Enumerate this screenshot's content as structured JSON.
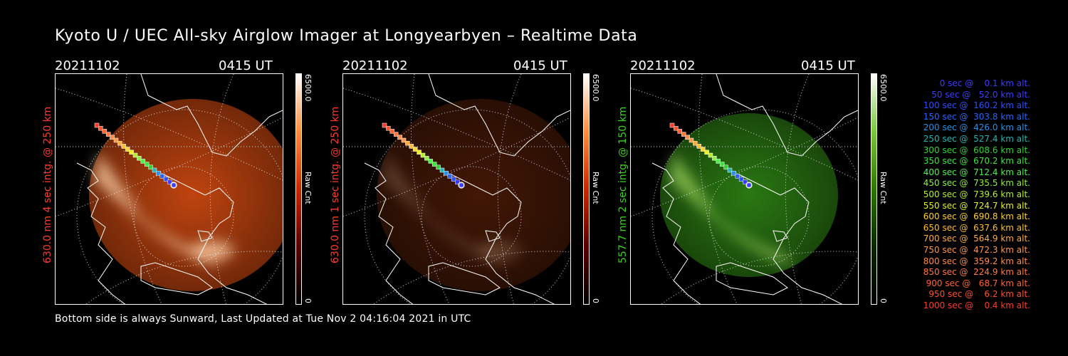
{
  "title": "Kyoto U / UEC All-sky Airglow Imager at Longyearbyen – Realtime Data",
  "footer": "Bottom side is always Sunward, Last Updated at Tue Nov  2 04:16:04 2021 in UTC",
  "colors": {
    "red_text": "#ff3c28",
    "green_text": "#3cd21e",
    "red_glow": "#ff5a14",
    "green_glow": "#46c81e"
  },
  "panels": [
    {
      "date": "20211102",
      "time": "0415 UT",
      "ylabel": "630.0 nm 4 sec intg. @ 250 km",
      "cbar_max": "6500.0",
      "cbar_min": "0",
      "cbar_label": "Raw Cnt",
      "color": "red",
      "intensity": 1.0
    },
    {
      "date": "20211102",
      "time": "0415 UT",
      "ylabel": "630.0 nm 1 sec intg. @ 250 km",
      "cbar_max": "6500.0",
      "cbar_min": "0",
      "cbar_label": "Raw Cnt",
      "color": "red",
      "intensity": 0.35
    },
    {
      "date": "20211102",
      "time": "0415 UT",
      "ylabel": "557.7 nm 2 sec intg. @ 150 km",
      "cbar_max": "6500.0",
      "cbar_min": "0",
      "cbar_label": "Raw Cnt",
      "color": "green",
      "intensity": 0.8
    }
  ],
  "legend": [
    {
      "text": "0 sec @    0.1 km alt.",
      "color": "#3c3cff"
    },
    {
      "text": "50 sec @   52.0 km alt.",
      "color": "#3c3cff"
    },
    {
      "text": "100 sec @  160.2 km alt.",
      "color": "#2850ff"
    },
    {
      "text": "150 sec @  303.8 km alt.",
      "color": "#2864ff"
    },
    {
      "text": "200 sec @  426.0 km alt.",
      "color": "#2890e6"
    },
    {
      "text": "250 sec @  527.4 km alt.",
      "color": "#28b4b4"
    },
    {
      "text": "300 sec @  608.6 km alt.",
      "color": "#32d232"
    },
    {
      "text": "350 sec @  670.2 km alt.",
      "color": "#3ce63c"
    },
    {
      "text": "400 sec @  712.4 km alt.",
      "color": "#50f050"
    },
    {
      "text": "450 sec @  735.5 km alt.",
      "color": "#8cf03c"
    },
    {
      "text": "500 sec @  739.6 km alt.",
      "color": "#b4f028"
    },
    {
      "text": "550 sec @  724.7 km alt.",
      "color": "#e6f028"
    },
    {
      "text": "600 sec @  690.8 km alt.",
      "color": "#ffd228"
    },
    {
      "text": "650 sec @  637.6 km alt.",
      "color": "#ffbe32"
    },
    {
      "text": "700 sec @  564.9 km alt.",
      "color": "#ffaa3c"
    },
    {
      "text": "750 sec @  472.3 km alt.",
      "color": "#ff9646"
    },
    {
      "text": "800 sec @  359.2 km alt.",
      "color": "#ff8c46"
    },
    {
      "text": "850 sec @  224.9 km alt.",
      "color": "#ff783c"
    },
    {
      "text": "900 sec @   68.7 km alt.",
      "color": "#ff6432"
    },
    {
      "text": "950 sec @    6.2 km alt.",
      "color": "#ff5028"
    },
    {
      "text": "1000 sec @    0.4 km alt.",
      "color": "#ff3c28"
    }
  ]
}
